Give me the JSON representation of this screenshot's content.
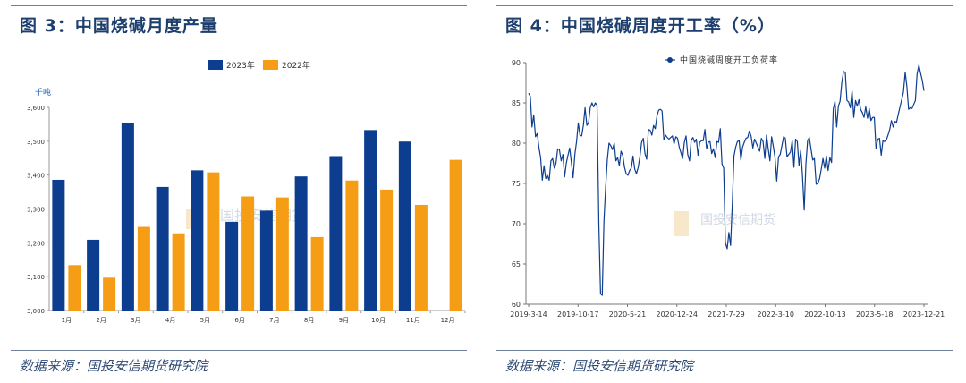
{
  "left": {
    "title": "图 3：中国烧碱月度产量",
    "source": "数据来源：国投安信期货研究院",
    "watermark": "国投安信期货",
    "chart_data": {
      "type": "bar",
      "unit_label": "千吨",
      "categories": [
        "1月",
        "2月",
        "3月",
        "4月",
        "5月",
        "6月",
        "7月",
        "8月",
        "9月",
        "10月",
        "11月",
        "12月"
      ],
      "series": [
        {
          "name": "2023年",
          "color": "#0d3d8f",
          "values": [
            3386,
            3209,
            3553,
            3365,
            3414,
            3262,
            3295,
            3396,
            3456,
            3533,
            3499,
            null
          ]
        },
        {
          "name": "2022年",
          "color": "#f59d14",
          "values": [
            3134,
            3097,
            3247,
            3228,
            3408,
            3337,
            3334,
            3217,
            3384,
            3357,
            3312,
            3445
          ]
        }
      ],
      "ylim": [
        3000,
        3600
      ],
      "yticks": [
        3000,
        3100,
        3200,
        3300,
        3400,
        3500,
        3600
      ],
      "ytick_labels": [
        "3,000",
        "3,100",
        "3,200",
        "3,300",
        "3,400",
        "3,500",
        "3,600"
      ],
      "legend_position": "top-center",
      "grid": false
    }
  },
  "right": {
    "title": "图 4：中国烧碱周度开工率（%）",
    "source": "数据来源：国投安信期货研究院",
    "watermark": "国投安信期货",
    "chart_data": {
      "type": "line",
      "series_name": "中国烧碱周度开工负荷率",
      "color": "#0d3d8f",
      "ylim": [
        60,
        90
      ],
      "yticks": [
        60,
        65,
        70,
        75,
        80,
        85,
        90
      ],
      "xtick_labels": [
        "2019-3-14",
        "2019-10-17",
        "2020-5-21",
        "2020-12-24",
        "2021-7-29",
        "2022-3-10",
        "2022-10-13",
        "2023-5-18",
        "2023-12-21"
      ],
      "legend_position": "top-center",
      "grid": false,
      "values": [
        86.2,
        85.8,
        82,
        83.5,
        80.8,
        81.2,
        79.5,
        78.2,
        75.4,
        77.2,
        75.6,
        76,
        75.4,
        77.8,
        78.1,
        76.9,
        77.5,
        79.3,
        79.2,
        77.8,
        78.6,
        75.8,
        77.5,
        78.5,
        79.4,
        77.6,
        75.7,
        78.6,
        80.2,
        82.5,
        81,
        80.9,
        82.2,
        84.4,
        82.2,
        82.5,
        84.4,
        85,
        84.5,
        85,
        84.7,
        70,
        61.3,
        61.1,
        70.3,
        74.5,
        78,
        80,
        79.7,
        79.2,
        80,
        77.8,
        78.2,
        77.2,
        79,
        78.5,
        77,
        76.2,
        76,
        76.6,
        76.9,
        78.4,
        76.8,
        76.2,
        77,
        78.3,
        80.1,
        80.6,
        78.7,
        78,
        81.7,
        81.6,
        81,
        82.2,
        81.8,
        83.4,
        84.1,
        84.2,
        84,
        80.4,
        81,
        80.7,
        80.5,
        80.7,
        80.9,
        79.9,
        80.8,
        80.6,
        79.5,
        78.8,
        78.1,
        80.1,
        80.9,
        78.6,
        77.8,
        80.4,
        80.7,
        80.1,
        80.5,
        78.5,
        80.1,
        80.3,
        80.3,
        81.7,
        79.3,
        80.1,
        80.2,
        78.7,
        79.3,
        78.2,
        80.2,
        80.1,
        81.8,
        77.4,
        76.9,
        67.6,
        66.9,
        68.9,
        67.3,
        72.4,
        78.4,
        79.5,
        80.2,
        80.3,
        77.9,
        79.5,
        80.1,
        80.6,
        80.7,
        81.5,
        80.9,
        79.4,
        80.5,
        80,
        79.5,
        79,
        80.6,
        80.2,
        78.1,
        81,
        79.3,
        77.8,
        80.8,
        79.6,
        78.2,
        75.3,
        78.3,
        78.6,
        79.7,
        80.8,
        80.6,
        78.3,
        78.6,
        78.9,
        80.3,
        77,
        80.5,
        80.2,
        77.2,
        79.1,
        76.1,
        71.7,
        77.4,
        80.3,
        80.7,
        79.3,
        77.9,
        78.1,
        74.9,
        75,
        75.6,
        76.8,
        78.1,
        76.9,
        78.4,
        76.6,
        78.2,
        77.6,
        84.2,
        85.2,
        82,
        84.6,
        85.2,
        87.6,
        88.9,
        88.8,
        85.3,
        85.1,
        84.4,
        86.5,
        83.2,
        85.3,
        84.6,
        85.4,
        84.2,
        83.8,
        83.2,
        84.5,
        83.1,
        84.3,
        82.8,
        83.2,
        83.2,
        79.3,
        80.5,
        80.6,
        78.5,
        80.3,
        80.2,
        80.4,
        81,
        81.7,
        82.8,
        82,
        82.7,
        82.6,
        83.6,
        84.5,
        85.4,
        86.3,
        88.8,
        87,
        84.2,
        84.4,
        84.3,
        84.8,
        85.3,
        88.6,
        89.7,
        88.7,
        87.8,
        86.5
      ]
    }
  }
}
